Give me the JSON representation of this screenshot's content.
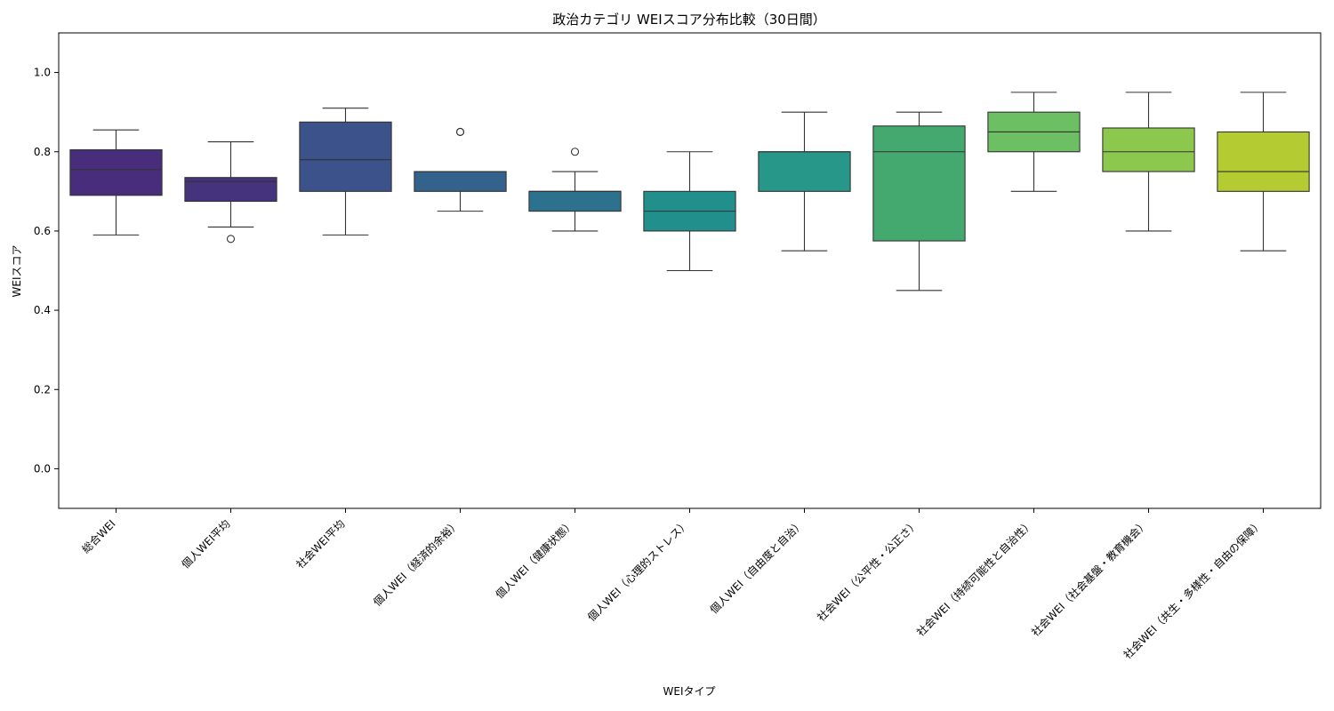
{
  "chart_data": {
    "type": "box",
    "title": "政治カテゴリ WEIスコア分布比較（30日間）",
    "xlabel": "WEIタイプ",
    "ylabel": "WEIスコア",
    "ylim": [
      -0.1,
      1.1
    ],
    "yticks": [
      "0.0",
      "0.2",
      "0.4",
      "0.6",
      "0.8",
      "1.0"
    ],
    "grid": false,
    "categories": [
      "総合WEI",
      "個人WEI平均",
      "社会WEI平均",
      "個人WEI（経済的余裕）",
      "個人WEI（健康状態）",
      "個人WEI（心理的ストレス）",
      "個人WEI（自由度と自治）",
      "社会WEI（公平性・公正さ）",
      "社会WEI（持続可能性と自治性）",
      "社会WEI（社会基盤・教育機会）",
      "社会WEI（共生・多様性・自由の保障）"
    ],
    "boxes": [
      {
        "whisker_low": 0.59,
        "q1": 0.69,
        "median": 0.755,
        "q3": 0.805,
        "whisker_high": 0.855,
        "outliers": [],
        "color": "#472d7b"
      },
      {
        "whisker_low": 0.61,
        "q1": 0.675,
        "median": 0.725,
        "q3": 0.735,
        "whisker_high": 0.825,
        "outliers": [
          0.58
        ],
        "color": "#46337e"
      },
      {
        "whisker_low": 0.59,
        "q1": 0.7,
        "median": 0.78,
        "q3": 0.875,
        "whisker_high": 0.91,
        "outliers": [],
        "color": "#3b528b"
      },
      {
        "whisker_low": 0.65,
        "q1": 0.7,
        "median": 0.75,
        "q3": 0.75,
        "whisker_high": 0.75,
        "outliers": [
          0.85,
          0.85
        ],
        "color": "#33638d"
      },
      {
        "whisker_low": 0.6,
        "q1": 0.65,
        "median": 0.7,
        "q3": 0.7,
        "whisker_high": 0.75,
        "outliers": [
          0.8
        ],
        "color": "#2c728e"
      },
      {
        "whisker_low": 0.5,
        "q1": 0.6,
        "median": 0.65,
        "q3": 0.7,
        "whisker_high": 0.8,
        "outliers": [],
        "color": "#21908d"
      },
      {
        "whisker_low": 0.55,
        "q1": 0.7,
        "median": 0.8,
        "q3": 0.8,
        "whisker_high": 0.9,
        "outliers": [],
        "color": "#27978a"
      },
      {
        "whisker_low": 0.45,
        "q1": 0.575,
        "median": 0.8,
        "q3": 0.865,
        "whisker_high": 0.9,
        "outliers": [],
        "color": "#44a96f"
      },
      {
        "whisker_low": 0.7,
        "q1": 0.8,
        "median": 0.85,
        "q3": 0.9,
        "whisker_high": 0.95,
        "outliers": [],
        "color": "#6cbf62"
      },
      {
        "whisker_low": 0.6,
        "q1": 0.75,
        "median": 0.8,
        "q3": 0.86,
        "whisker_high": 0.95,
        "outliers": [],
        "color": "#8cc84e"
      },
      {
        "whisker_low": 0.55,
        "q1": 0.7,
        "median": 0.75,
        "q3": 0.85,
        "whisker_high": 0.95,
        "outliers": [],
        "color": "#b5cb32"
      }
    ]
  }
}
